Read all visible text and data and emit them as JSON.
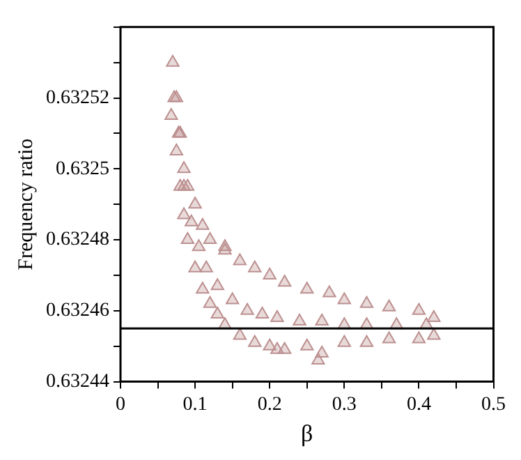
{
  "chart_data": {
    "type": "scatter",
    "xlabel": "β",
    "ylabel": "Frequency ratio",
    "marker": "triangle",
    "grid": false,
    "legend": false,
    "xlim": [
      0,
      0.5
    ],
    "ylim": [
      0.63244,
      0.63254
    ],
    "xticks": [
      0,
      {
        "value": 0.05,
        "label": null
      },
      0.1,
      {
        "value": 0.15,
        "label": null
      },
      0.2,
      {
        "value": 0.25,
        "label": null
      },
      0.3,
      {
        "value": 0.35,
        "label": null
      },
      0.4,
      {
        "value": 0.45,
        "label": null
      },
      0.5
    ],
    "yticks": [
      0.63244,
      {
        "value": 0.63245,
        "label": null
      },
      0.63246,
      {
        "value": 0.63247,
        "label": null
      },
      0.63248,
      {
        "value": 0.63249,
        "label": null
      },
      0.6325,
      {
        "value": 0.63251,
        "label": null
      },
      0.63252,
      {
        "value": 0.63253,
        "label": null
      },
      {
        "value": 0.63254,
        "label": null
      }
    ],
    "ref_lines": [
      {
        "axis": "y",
        "value": 0.632455,
        "color": "#000000"
      }
    ],
    "series": [
      {
        "color": "#bc8f8f",
        "x": [
          0.07,
          0.075,
          0.08,
          0.085,
          0.09,
          0.1,
          0.11,
          0.12,
          0.14,
          0.16,
          0.18,
          0.2,
          0.22,
          0.25,
          0.28,
          0.3,
          0.33,
          0.36,
          0.4,
          0.42,
          0.068,
          0.075,
          0.08,
          0.085,
          0.09,
          0.1,
          0.11,
          0.12,
          0.13,
          0.14,
          0.16,
          0.18,
          0.2,
          0.22,
          0.25,
          0.27,
          0.3,
          0.33,
          0.36,
          0.4,
          0.42,
          0.072,
          0.078,
          0.085,
          0.095,
          0.105,
          0.115,
          0.13,
          0.15,
          0.17,
          0.19,
          0.21,
          0.24,
          0.27,
          0.3,
          0.33,
          0.37,
          0.41,
          0.14,
          0.265,
          0.21
        ],
        "values": [
          0.63253,
          0.63252,
          0.63251,
          0.6325,
          0.632495,
          0.63249,
          0.632484,
          0.63248,
          0.632477,
          0.632474,
          0.632472,
          0.63247,
          0.632468,
          0.632466,
          0.632465,
          0.632463,
          0.632462,
          0.632461,
          0.63246,
          0.632458,
          0.632515,
          0.632505,
          0.632495,
          0.632487,
          0.63248,
          0.632472,
          0.632466,
          0.632462,
          0.632459,
          0.632456,
          0.632453,
          0.632451,
          0.63245,
          0.632449,
          0.63245,
          0.632448,
          0.632451,
          0.632451,
          0.632452,
          0.632452,
          0.632453,
          0.63252,
          0.63251,
          0.632495,
          0.632485,
          0.632478,
          0.632472,
          0.632467,
          0.632463,
          0.63246,
          0.632459,
          0.632458,
          0.632457,
          0.632457,
          0.632456,
          0.632456,
          0.632456,
          0.632456,
          0.632478,
          0.632446,
          0.632449
        ]
      }
    ]
  }
}
